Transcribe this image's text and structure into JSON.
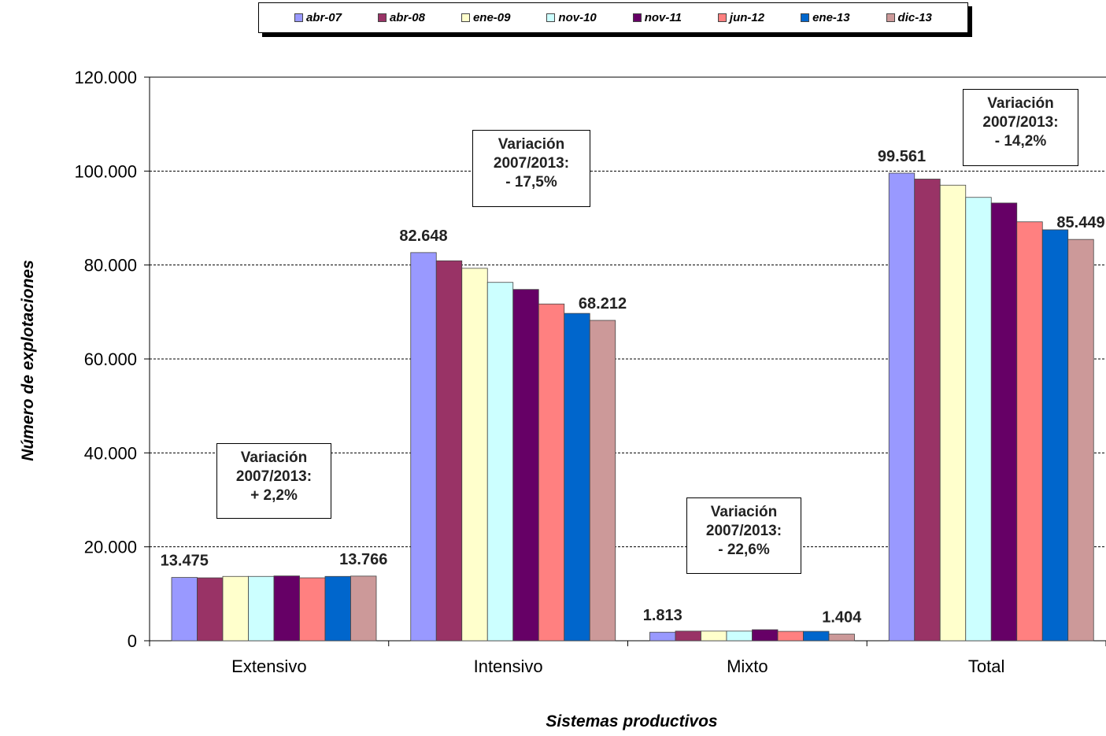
{
  "chart_data": {
    "type": "bar",
    "xlabel": "Sistemas productivos",
    "ylabel": "Número de explotaciones",
    "ylim": [
      0,
      120000
    ],
    "yticks": [
      0,
      20000,
      40000,
      60000,
      80000,
      100000,
      120000
    ],
    "ytick_labels": [
      "0",
      "20.000",
      "40.000",
      "60.000",
      "80.000",
      "100.000",
      "120.000"
    ],
    "grid": "horizontal dashed",
    "legend_position": "top",
    "categories": [
      "Extensivo",
      "Intensivo",
      "Mixto",
      "Total"
    ],
    "series": [
      {
        "name": "abr-07",
        "color": "#9999ff",
        "values": [
          13475,
          82648,
          1813,
          99561
        ]
      },
      {
        "name": "abr-08",
        "color": "#993366",
        "values": [
          13400,
          80900,
          2050,
          98300
        ]
      },
      {
        "name": "ene-09",
        "color": "#ffffcc",
        "values": [
          13700,
          79300,
          2050,
          97000
        ]
      },
      {
        "name": "nov-10",
        "color": "#ccffff",
        "values": [
          13700,
          76300,
          2050,
          94400
        ]
      },
      {
        "name": "nov-11",
        "color": "#660066",
        "values": [
          13800,
          74800,
          2350,
          93200
        ]
      },
      {
        "name": "jun-12",
        "color": "#ff8080",
        "values": [
          13400,
          71700,
          2000,
          89200
        ]
      },
      {
        "name": "ene-13",
        "color": "#0066cc",
        "values": [
          13700,
          69700,
          2000,
          87500
        ]
      },
      {
        "name": "dic-13",
        "color": "#cc9999",
        "values": [
          13766,
          68212,
          1404,
          85449
        ]
      }
    ],
    "data_labels": [
      {
        "category": 0,
        "series": 0,
        "text": "13.475"
      },
      {
        "category": 0,
        "series": 7,
        "text": "13.766"
      },
      {
        "category": 1,
        "series": 0,
        "text": "82.648"
      },
      {
        "category": 1,
        "series": 7,
        "text": "68.212"
      },
      {
        "category": 2,
        "series": 0,
        "text": "1.813"
      },
      {
        "category": 2,
        "series": 7,
        "text": "1.404"
      },
      {
        "category": 3,
        "series": 0,
        "text": "99.561"
      },
      {
        "category": 3,
        "series": 7,
        "text": "85.449"
      }
    ],
    "annotations": [
      {
        "lines": [
          "Variación",
          "2007/2013:",
          "+ 2,2%"
        ]
      },
      {
        "lines": [
          "Variación",
          "2007/2013:",
          "- 17,5%"
        ]
      },
      {
        "lines": [
          "Variación",
          "2007/2013:",
          "- 22,6%"
        ]
      },
      {
        "lines": [
          "Variación",
          "2007/2013:",
          "- 14,2%"
        ]
      }
    ]
  }
}
